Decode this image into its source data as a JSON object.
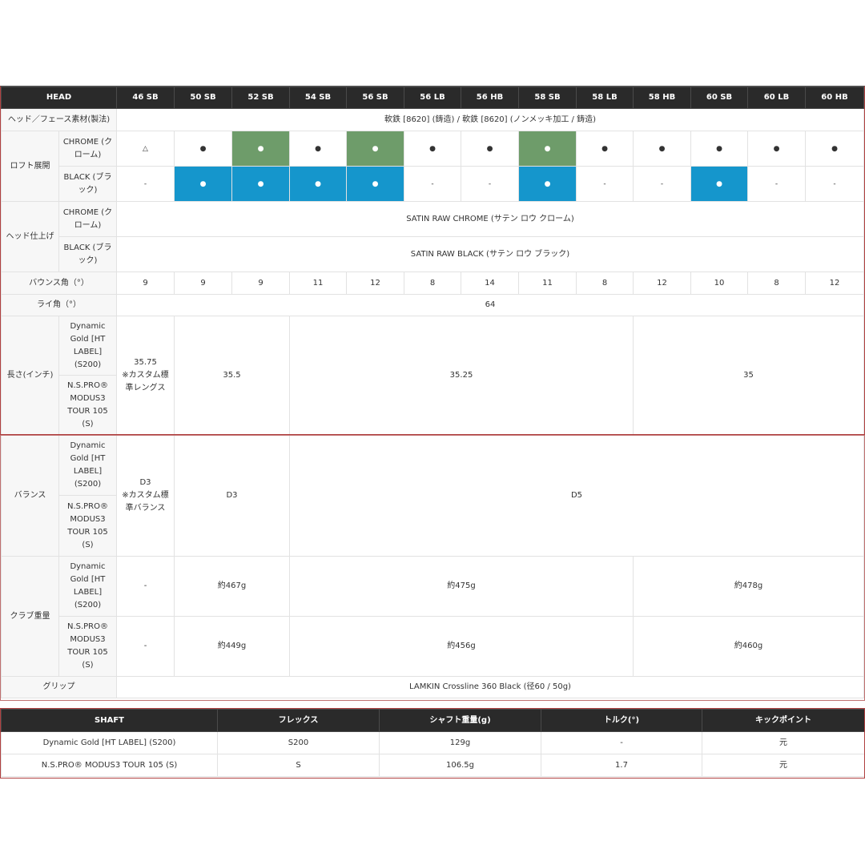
{
  "head_table": {
    "head_label": "HEAD",
    "models": [
      "46 SB",
      "50 SB",
      "52 SB",
      "54 SB",
      "56 SB",
      "56 LB",
      "56 HB",
      "58 SB",
      "58 LB",
      "58 HB",
      "60 SB",
      "60 LB",
      "60 HB"
    ],
    "material": {
      "label": "ヘッド／フェース素材(製法)",
      "value": "軟鉄 [8620] (鋳造) / 軟鉄 [8620] (ノンメッキ加工 / 鋳造)"
    },
    "loft": {
      "label": "ロフト展開",
      "chrome": {
        "label": "CHROME (クローム)",
        "marks": [
          "△",
          "●",
          "●",
          "●",
          "●",
          "●",
          "●",
          "●",
          "●",
          "●",
          "●",
          "●",
          "●"
        ],
        "highlight": "#6e9c6a"
      },
      "black": {
        "label": "BLACK (ブラック)",
        "marks": [
          "-",
          "●",
          "●",
          "●",
          "●",
          "-",
          "-",
          "●",
          "-",
          "-",
          "●",
          "-",
          "-"
        ],
        "highlight": "#1596cc"
      }
    },
    "finish": {
      "label": "ヘッド仕上げ",
      "chrome": {
        "label": "CHROME (クローム)",
        "value": "SATIN RAW CHROME (サテン ロウ クローム)"
      },
      "black": {
        "label": "BLACK (ブラック)",
        "value": "SATIN RAW BLACK (サテン ロウ ブラック)"
      }
    },
    "bounce": {
      "label": "バウンス角（°）",
      "values": [
        "9",
        "9",
        "9",
        "11",
        "12",
        "8",
        "14",
        "11",
        "8",
        "12",
        "10",
        "8",
        "12"
      ]
    },
    "lie": {
      "label": "ライ角（°）",
      "value": "64"
    },
    "length": {
      "label": "長さ(インチ)",
      "shaft1": "Dynamic Gold [HT LABEL] (S200)",
      "shaft2": "N.S.PRO® MODUS3 TOUR 105 (S)",
      "v1": "35.75\n※カスタム標準レングス",
      "v2": "35.5",
      "v3": "35.25",
      "v4": "35"
    },
    "balance": {
      "label": "バランス",
      "shaft1": "Dynamic Gold [HT LABEL] (S200)",
      "shaft2": "N.S.PRO® MODUS3 TOUR 105 (S)",
      "v1": "D3\n※カスタム標準バランス",
      "v2": "D3",
      "v3": "D5"
    },
    "weight": {
      "label": "クラブ重量",
      "dg": {
        "label": "Dynamic Gold [HT LABEL] (S200)",
        "v1": "-",
        "v2": "約467g",
        "v3": "約475g",
        "v4": "約478g"
      },
      "ns": {
        "label": "N.S.PRO® MODUS3 TOUR 105 (S)",
        "v1": "-",
        "v2": "約449g",
        "v3": "約456g",
        "v4": "約460g"
      }
    },
    "grip": {
      "label": "グリップ",
      "value": "LAMKIN Crossline 360 Black (径60 / 50g)"
    }
  },
  "shaft_table": {
    "headers": [
      "SHAFT",
      "フレックス",
      "シャフト重量(g)",
      "トルク(°)",
      "キックポイント"
    ],
    "rows": [
      [
        "Dynamic Gold [HT LABEL] (S200)",
        "S200",
        "129g",
        "-",
        "元"
      ],
      [
        "N.S.PRO® MODUS3 TOUR 105 (S)",
        "S",
        "106.5g",
        "1.7",
        "元"
      ]
    ]
  }
}
